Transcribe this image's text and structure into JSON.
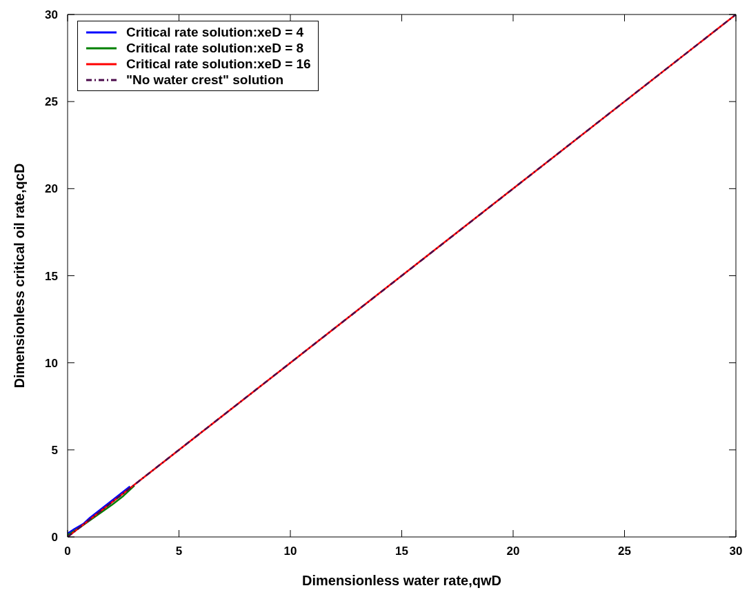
{
  "chart_data": {
    "type": "line",
    "xlabel": "Dimensionless water rate,qwD",
    "ylabel": "Dimensionless critical oil rate,qcD",
    "xlim": [
      0,
      30
    ],
    "ylim": [
      0,
      30
    ],
    "xticks": [
      0,
      5,
      10,
      15,
      20,
      25,
      30
    ],
    "yticks": [
      0,
      5,
      10,
      15,
      20,
      25,
      30
    ],
    "grid": false,
    "legend": "top left",
    "marker": "none",
    "series": [
      {
        "name": "Critical rate solution:xeD = 4",
        "color": "#0000ff",
        "x": [
          0,
          0.3,
          0.7,
          1,
          2,
          2.8
        ],
        "values": [
          0.2,
          0.45,
          0.75,
          1.1,
          2.1,
          2.9
        ]
      },
      {
        "name": "Critical rate solution:xeD = 8",
        "color": "#008000",
        "x": [
          0,
          0.5,
          1,
          2,
          2.5,
          3
        ],
        "values": [
          0.1,
          0.5,
          0.95,
          1.85,
          2.35,
          2.95
        ]
      },
      {
        "name": "Critical rate solution:xeD = 16",
        "color": "#ff0000",
        "x": [
          0,
          0.5,
          1,
          3,
          10,
          20,
          30
        ],
        "values": [
          0,
          0.5,
          1,
          3,
          10,
          20,
          30
        ]
      },
      {
        "name": "\"No water crest\" solution",
        "color": "#4b0a4b",
        "line_style": "dashed",
        "x": [
          0,
          30
        ],
        "values": [
          0,
          30
        ]
      }
    ]
  }
}
